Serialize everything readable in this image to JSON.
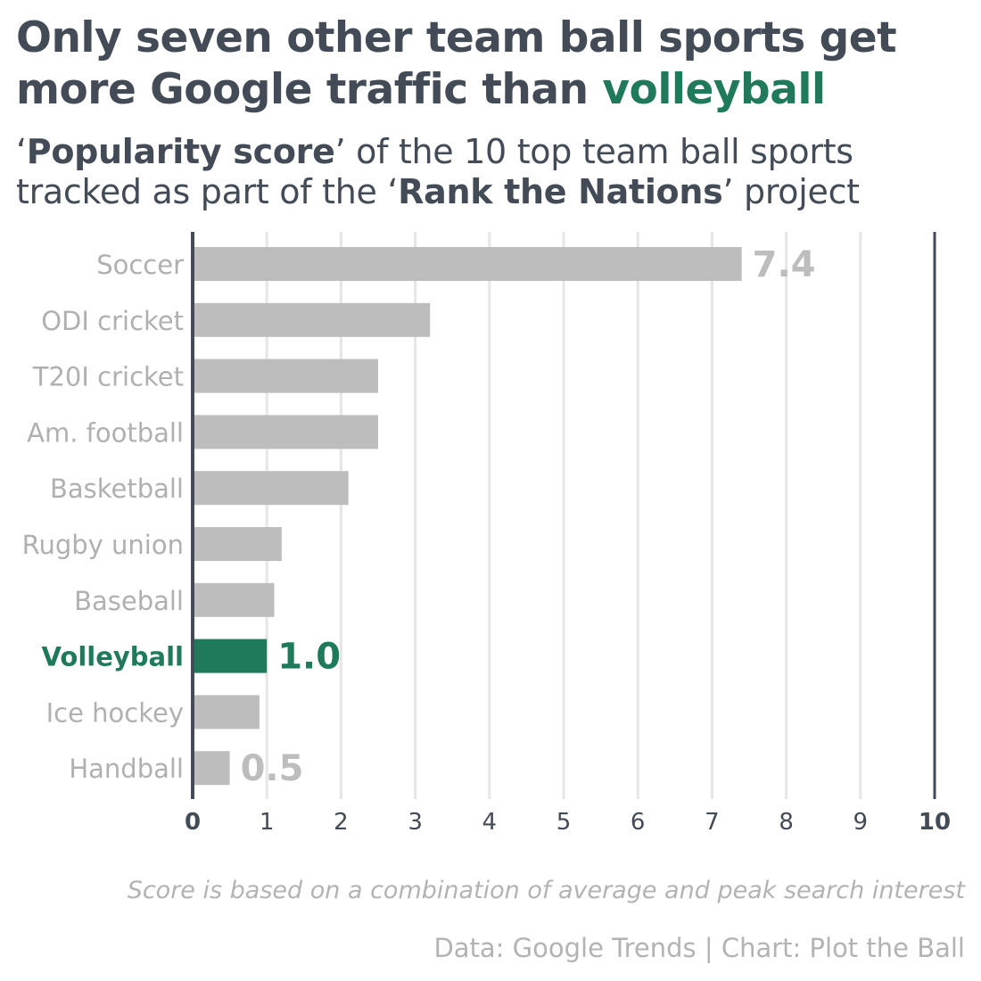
{
  "header": {
    "title_line1": "Only seven other team ball sports get",
    "title_line2_pre": "more Google traffic than ",
    "title_line2_accent": "volleyball",
    "subtitle_q1": "‘",
    "subtitle_bold1": "Popularity score",
    "subtitle_mid": "’ of the 10 top team ball sports tracked as part of the ‘",
    "subtitle_bold2": "Rank the Nations",
    "subtitle_end": "’ project"
  },
  "footer": {
    "note": "Score is based on a combination of average and peak search interest",
    "credit": "Data: Google Trends | Chart: Plot the Ball"
  },
  "colors": {
    "bar": "#bdbdbd",
    "highlight": "#1f7a5c",
    "label": "#b0b0b0",
    "axis": "#434b57",
    "grid": "#e6e6e6"
  },
  "chart_data": {
    "type": "bar",
    "orientation": "horizontal",
    "categories": [
      "Soccer",
      "ODI cricket",
      "T20I cricket",
      "Am. football",
      "Basketball",
      "Rugby union",
      "Baseball",
      "Volleyball",
      "Ice hockey",
      "Handball"
    ],
    "values": [
      7.4,
      3.2,
      2.5,
      2.5,
      2.1,
      1.2,
      1.1,
      1.0,
      0.9,
      0.5
    ],
    "highlight": "Volleyball",
    "data_labels": [
      {
        "category": "Soccer",
        "text": "7.4"
      },
      {
        "category": "Volleyball",
        "text": "1.0"
      },
      {
        "category": "Handball",
        "text": "0.5"
      }
    ],
    "xlim": [
      0,
      10
    ],
    "xticks": [
      "0",
      "1",
      "2",
      "3",
      "4",
      "5",
      "6",
      "7",
      "8",
      "9",
      "10"
    ],
    "grid": true,
    "xlabel": "",
    "ylabel": "",
    "title": "Only seven other team ball sports get more Google traffic than volleyball"
  }
}
